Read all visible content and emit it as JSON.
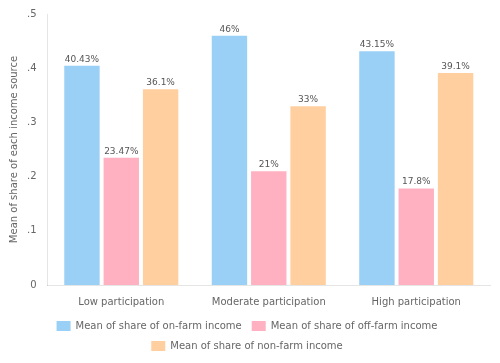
{
  "chart_data": {
    "type": "bar",
    "categories": [
      "Low participation",
      "Moderate participation",
      "High participation"
    ],
    "series": [
      {
        "name": "Mean of share of on-farm income",
        "values": [
          0.4043,
          0.46,
          0.4315
        ],
        "value_labels": [
          "40.43%",
          "46%",
          "43.15%"
        ]
      },
      {
        "name": "Mean of share of off-farm income",
        "values": [
          0.2347,
          0.21,
          0.178
        ],
        "value_labels": [
          "23.47%",
          "21%",
          "17.8%"
        ]
      },
      {
        "name": "Mean of share of non-farm income",
        "values": [
          0.361,
          0.33,
          0.391
        ],
        "value_labels": [
          "36.1%",
          "33%",
          "39.1%"
        ]
      }
    ],
    "ylabel": "Mean of share of each income source",
    "ylim": [
      0,
      0.5
    ],
    "yticks": [
      0,
      {
        "value": 0.1,
        "label": ".1"
      },
      {
        "value": 0.2,
        "label": ".2"
      },
      {
        "value": 0.3,
        "label": ".3"
      },
      {
        "value": 0.4,
        "label": ".4"
      },
      {
        "value": 0.5,
        "label": ".5"
      }
    ],
    "grid": false,
    "legend": "bottom",
    "data_labels": true
  }
}
